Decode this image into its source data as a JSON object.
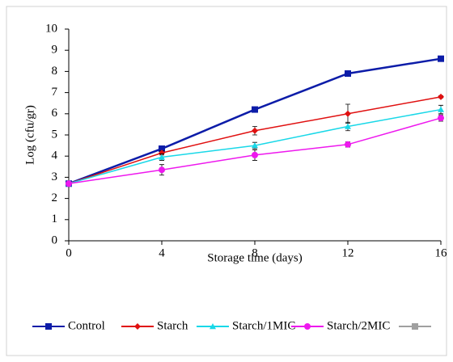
{
  "chart_data": {
    "type": "line",
    "xlabel": "Storage time (days)",
    "ylabel": "Log (cfu/gr)",
    "x": [
      0,
      4,
      8,
      12,
      16
    ],
    "xlim": [
      0,
      16
    ],
    "xticks": [
      0,
      4,
      8,
      12,
      16
    ],
    "ylim": [
      0,
      10
    ],
    "yticks": [
      0,
      1,
      2,
      3,
      4,
      5,
      6,
      7,
      8,
      9,
      10
    ],
    "series": [
      {
        "name": "Control",
        "color": "#0c1ca8",
        "marker": "square",
        "values": [
          2.7,
          4.35,
          6.2,
          7.9,
          8.6
        ],
        "errors": [
          0,
          0.05,
          0.05,
          0.05,
          0.05
        ]
      },
      {
        "name": "Starch",
        "color": "#e01010",
        "marker": "diamond",
        "values": [
          2.7,
          4.15,
          5.2,
          6.0,
          6.8
        ],
        "errors": [
          0,
          0.1,
          0.2,
          0.45,
          0.05
        ]
      },
      {
        "name": "Starch/1MIC",
        "color": "#19d8e8",
        "marker": "triangle",
        "values": [
          2.7,
          3.95,
          4.5,
          5.4,
          6.2
        ],
        "errors": [
          0,
          0.15,
          0.15,
          0.2,
          0.2
        ]
      },
      {
        "name": "Starch/2MIC",
        "color": "#ee18ee",
        "marker": "circle",
        "values": [
          2.7,
          3.35,
          4.05,
          4.55,
          5.8
        ],
        "errors": [
          0,
          0.25,
          0.25,
          0.12,
          0.15
        ]
      },
      {
        "color": "#a0a0a0",
        "marker": "square"
      }
    ],
    "legend": "bottom"
  }
}
